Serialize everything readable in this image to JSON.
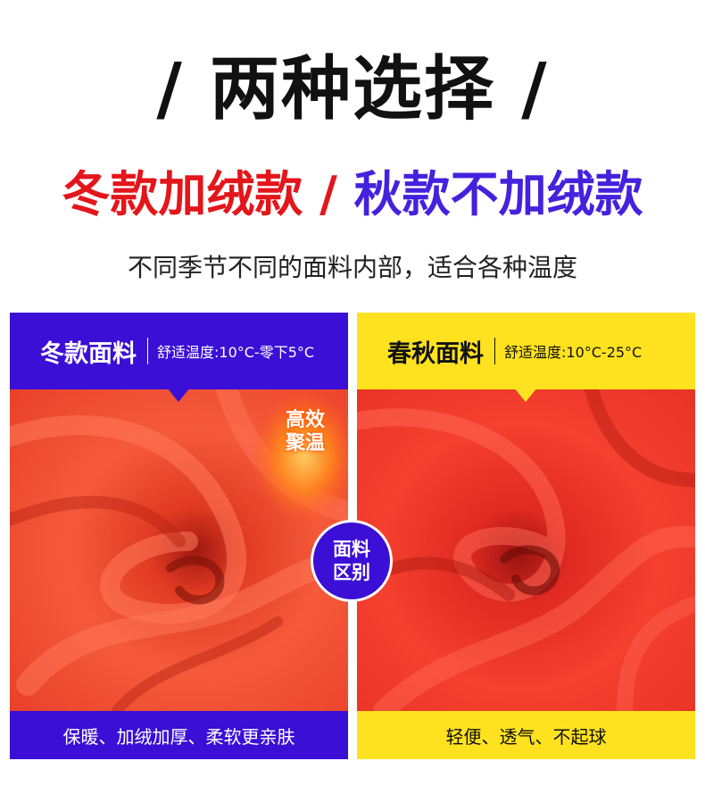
{
  "title": "/ 两种选择 /",
  "subtitle": {
    "winter": "冬款加绒款",
    "separator": " / ",
    "autumn": "秋款不加绒款"
  },
  "description": "不同季节不同的面料内部，适合各种温度",
  "panels": {
    "winter": {
      "name": "冬款面料",
      "temperature": "舒适温度:10°C-零下5°C",
      "badge_line1": "高效",
      "badge_line2": "聚温",
      "features": "保暖、加绒加厚、柔软更亲肤"
    },
    "autumn": {
      "name": "春秋面料",
      "temperature": "舒适温度:10°C-25°C",
      "features": "轻便、透气、不起球"
    }
  },
  "difference_badge": {
    "line1": "面料",
    "line2": "区别"
  },
  "colors": {
    "red": "#e3161b",
    "purple": "#3b0fd6",
    "yellow": "#ffe21f",
    "fabric_red": "#f0412a"
  }
}
